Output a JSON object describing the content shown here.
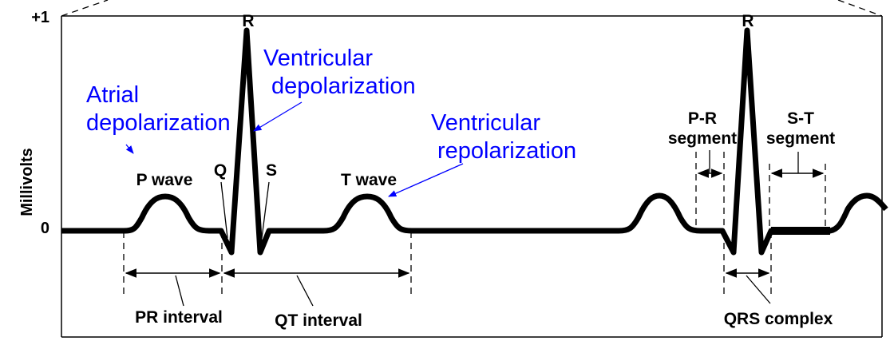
{
  "axis": {
    "ylabel": "Millivolts",
    "top_tick": "+1",
    "zero_tick": "0"
  },
  "waves": {
    "r1": "R",
    "r2": "R",
    "q": "Q",
    "s": "S",
    "p_wave": "P wave",
    "t_wave": "T wave"
  },
  "annotations": {
    "atrial_line1": "Atrial",
    "atrial_line2": "depolarization",
    "ventricular_dep_line1": "Ventricular",
    "ventricular_dep_line2": "depolarization",
    "ventricular_rep_line1": "Ventricular",
    "ventricular_rep_line2": "repolarization"
  },
  "intervals": {
    "pr": "PR interval",
    "qt": "QT interval",
    "qrs": "QRS complex",
    "pr_segment_line1": "P-R",
    "pr_segment_line2": "segment",
    "st_segment_line1": "S-T",
    "st_segment_line2": "segment"
  },
  "colors": {
    "annotation": "#0000ff",
    "trace": "#000000"
  }
}
